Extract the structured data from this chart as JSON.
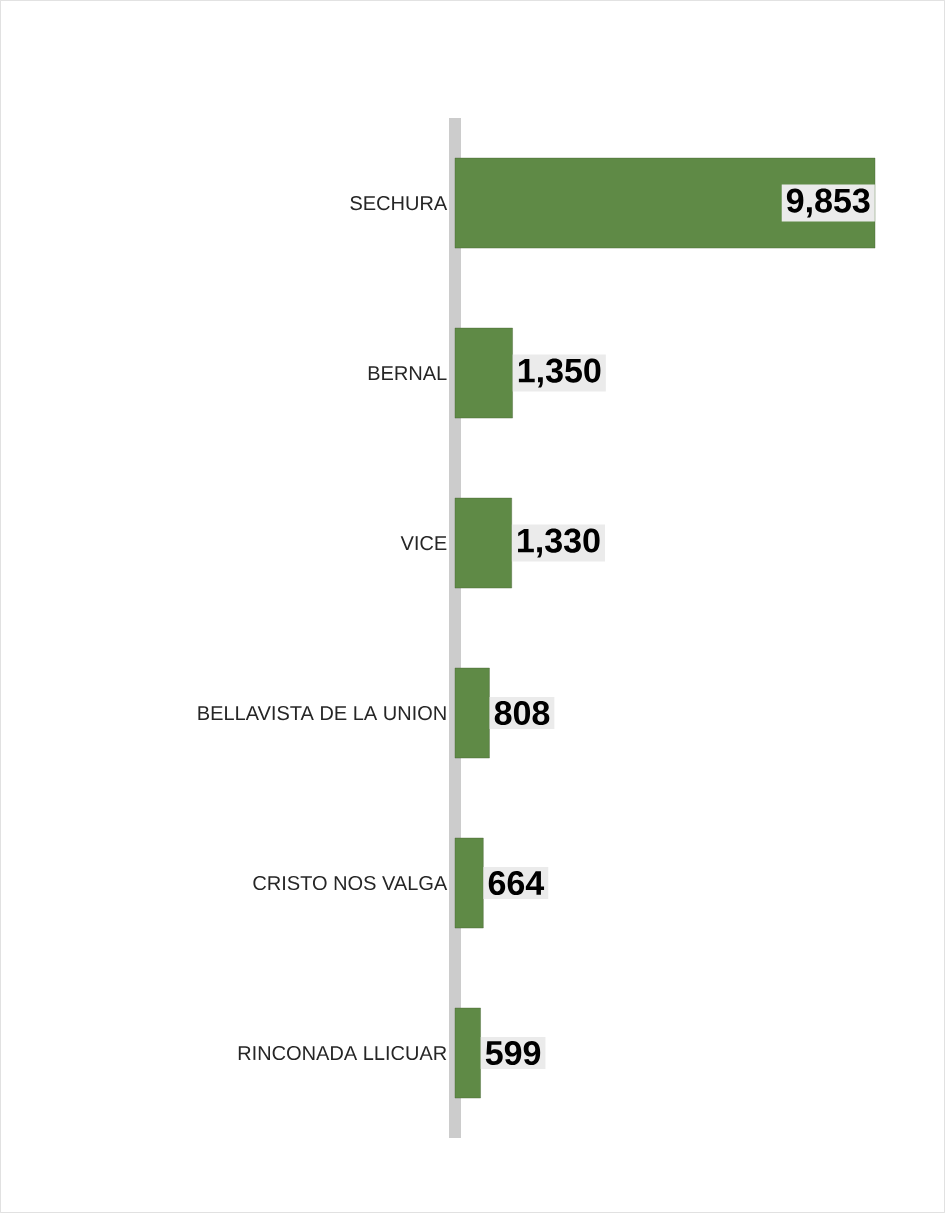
{
  "chart_data": {
    "type": "bar",
    "orientation": "horizontal",
    "categories": [
      "SECHURA",
      "BERNAL",
      "VICE",
      "BELLAVISTA DE LA UNION",
      "CRISTO NOS VALGA",
      "RINCONADA LLICUAR"
    ],
    "values": [
      9853,
      1350,
      1330,
      808,
      664,
      599
    ],
    "value_labels": [
      "9,853",
      "1,350",
      "1,330",
      "808",
      "664",
      "599"
    ],
    "color": "#5f8a46"
  }
}
